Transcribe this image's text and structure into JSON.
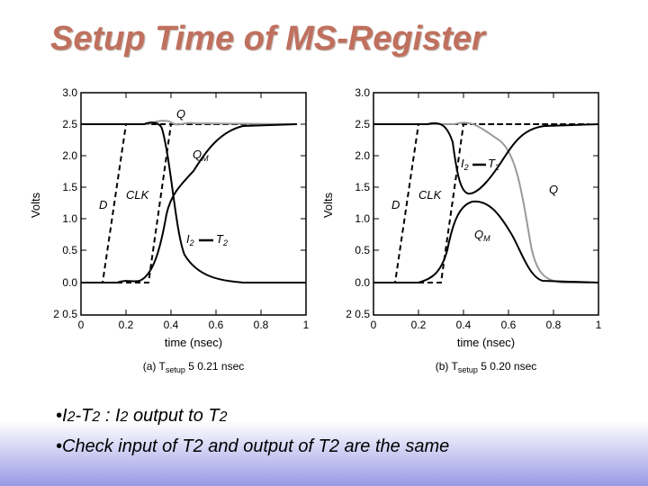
{
  "title": "Setup Time of MS-Register",
  "figure": {
    "y_axis_label": "Volts",
    "x_axis_label": "time (nsec)",
    "y_ticks": [
      "3.0",
      "2.5",
      "2.0",
      "1.5",
      "1.0",
      "0.5",
      "0.0",
      "2 0.5"
    ],
    "x_ticks": [
      "0",
      "0.2",
      "0.4",
      "0.6",
      "0.8",
      "1"
    ],
    "panel_a": {
      "caption_prefix": "(a) T",
      "caption_sub": "setup",
      "caption_suffix": " 5  0.21 nsec",
      "labels": {
        "q": "Q",
        "qm_base": "Q",
        "qm_sub": "M",
        "d": "D",
        "clk": "CLK",
        "i2": "I",
        "i2_sub": "2",
        "t2": "T",
        "t2_sub": "2"
      }
    },
    "panel_b": {
      "caption_prefix": "(b) T",
      "caption_sub": "setup",
      "caption_suffix": " 5  0.20 nsec",
      "labels": {
        "q": "Q",
        "qm_base": "Q",
        "qm_sub": "M",
        "d": "D",
        "clk": "CLK",
        "i2": "I",
        "i2_sub": "2",
        "t2": "T",
        "t2_sub": "2"
      }
    }
  },
  "bullets": {
    "line1": {
      "dot": "•",
      "i2a": "I",
      "i2a_sub": "2",
      "dash": "-T",
      "t2a_sub": "2",
      "colon": " : I",
      "i2b_sub": "2",
      "mid": "  output  to  T",
      "t2b_sub": "2"
    },
    "line2": "•Check input of T2 and output of T2 are the same"
  }
}
